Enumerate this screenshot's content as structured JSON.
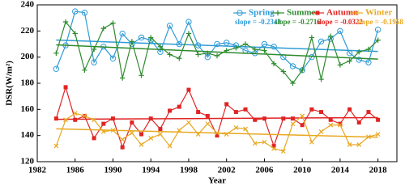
{
  "chart_data": {
    "type": "line",
    "x_label": "Year",
    "y_label": "DSR(W/m²)",
    "x": [
      1984,
      1985,
      1986,
      1987,
      1988,
      1989,
      1990,
      1991,
      1992,
      1993,
      1994,
      1995,
      1996,
      1997,
      1998,
      1999,
      2000,
      2001,
      2002,
      2003,
      2004,
      2005,
      2006,
      2007,
      2008,
      2009,
      2010,
      2011,
      2012,
      2013,
      2014,
      2015,
      2016,
      2017,
      2018
    ],
    "series": [
      {
        "name": "Spring",
        "color": "#2f9bd6",
        "marker": "circle",
        "slope_label": "slope = -0.2343",
        "values": [
          191,
          209,
          235,
          234,
          196,
          208,
          199,
          218,
          210,
          215,
          213,
          204,
          224,
          210,
          227,
          209,
          200,
          210,
          211,
          209,
          205,
          203,
          210,
          208,
          200,
          193,
          190,
          200,
          212,
          214,
          220,
          203,
          198,
          196,
          221
        ]
      },
      {
        "name": "Summer",
        "color": "#2e8b2e",
        "marker": "plus",
        "slope_label": "slope = -0.2716",
        "values": [
          203,
          227,
          218,
          190,
          206,
          222,
          226,
          184,
          212,
          186,
          215,
          208,
          202,
          199,
          218,
          202,
          203,
          201,
          205,
          207,
          210,
          206,
          205,
          195,
          189,
          180,
          190,
          215,
          183,
          216,
          194,
          197,
          204,
          206,
          213
        ]
      },
      {
        "name": "Autumn",
        "color": "#e02424",
        "marker": "square",
        "slope_label": "slope = -0.0322",
        "values": [
          153,
          177,
          152,
          155,
          138,
          149,
          153,
          131,
          150,
          141,
          153,
          145,
          159,
          162,
          175,
          158,
          155,
          140,
          164,
          158,
          160,
          152,
          153,
          132,
          153,
          153,
          148,
          160,
          158,
          152,
          149,
          160,
          150,
          158,
          152
        ]
      },
      {
        "name": "Winter",
        "color": "#e8a820",
        "marker": "cross",
        "slope_label": "slope = -0.1958",
        "values": [
          132,
          152,
          157,
          155,
          152,
          143,
          144,
          137,
          142,
          133,
          138,
          141,
          132,
          144,
          150,
          141,
          149,
          142,
          141,
          146,
          145,
          134,
          135,
          130,
          128,
          149,
          155,
          135,
          143,
          148,
          148,
          133,
          133,
          139,
          141
        ]
      }
    ],
    "xlim": [
      1982,
      2020
    ],
    "xticks": [
      1982,
      1986,
      1990,
      1994,
      1998,
      2002,
      2006,
      2010,
      2014,
      2018
    ],
    "ylim": [
      120,
      240
    ],
    "yticks": [
      120,
      140,
      160,
      180,
      200,
      220,
      240
    ],
    "trend_lines": true,
    "legend": "upper right"
  }
}
